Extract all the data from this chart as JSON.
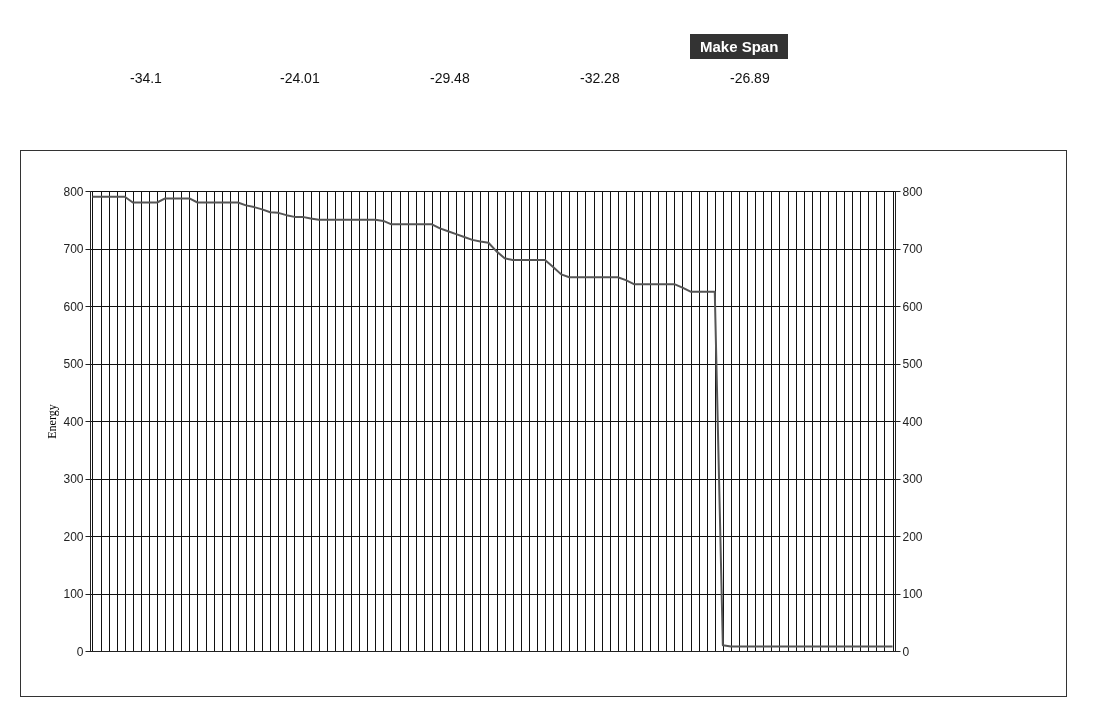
{
  "chart_data": {
    "type": "line",
    "ylabel": "Energy",
    "annotations": [
      "-34.1",
      "-24.01",
      "-29.48",
      "-32.28",
      "-26.89",
      "Make Span"
    ],
    "categories": [
      null,
      null,
      null,
      null,
      null,
      null,
      null,
      null,
      null,
      null,
      null,
      null,
      null,
      null,
      null,
      null,
      null,
      null,
      null,
      null,
      null,
      null,
      null,
      null,
      null,
      null,
      null,
      null,
      null,
      null,
      null,
      null,
      null,
      null,
      null,
      null,
      null,
      null,
      null,
      null,
      null,
      null,
      null,
      null,
      null,
      null,
      null,
      null,
      null,
      null,
      null,
      null,
      null,
      null,
      null,
      null,
      null,
      null,
      null,
      null,
      null,
      null,
      null,
      null,
      null,
      null,
      null,
      null,
      null,
      null,
      null,
      null,
      null,
      null,
      null,
      null,
      null,
      null,
      null,
      null,
      null,
      null,
      null,
      null,
      null,
      null,
      null,
      null,
      null,
      null,
      null,
      null,
      null,
      null,
      null,
      null,
      null,
      null,
      null,
      null
    ],
    "series": [
      {
        "color": "#555555",
        "values": [
          790,
          790,
          790,
          790,
          790,
          780,
          780,
          780,
          780,
          787,
          787,
          787,
          787,
          780,
          780,
          780,
          780,
          780,
          780,
          775,
          772,
          768,
          763,
          762,
          758,
          755,
          755,
          752,
          750,
          750,
          750,
          750,
          750,
          750,
          750,
          750,
          748,
          742,
          742,
          742,
          742,
          742,
          742,
          735,
          730,
          725,
          720,
          715,
          712,
          710,
          695,
          683,
          680,
          680,
          680,
          680,
          680,
          668,
          655,
          650,
          650,
          650,
          650,
          650,
          650,
          650,
          645,
          638,
          638,
          638,
          638,
          638,
          638,
          632,
          625,
          625,
          625,
          625,
          10,
          8,
          8,
          8,
          8,
          8,
          8,
          8,
          8,
          8,
          8,
          8,
          8,
          8,
          8,
          8,
          8,
          8,
          8,
          8,
          8,
          8
        ]
      }
    ],
    "ylim": [
      0,
      800
    ],
    "yticks": [
      0,
      100,
      200,
      300,
      400,
      500,
      600,
      700,
      800
    ],
    "y2lim": [
      0,
      800
    ],
    "y2ticks": [
      0,
      100,
      200,
      300,
      400,
      500,
      600,
      700,
      800
    ],
    "grid": true,
    "legend": false,
    "marker": "none",
    "line_style": "solid",
    "tick_labels": "y"
  }
}
